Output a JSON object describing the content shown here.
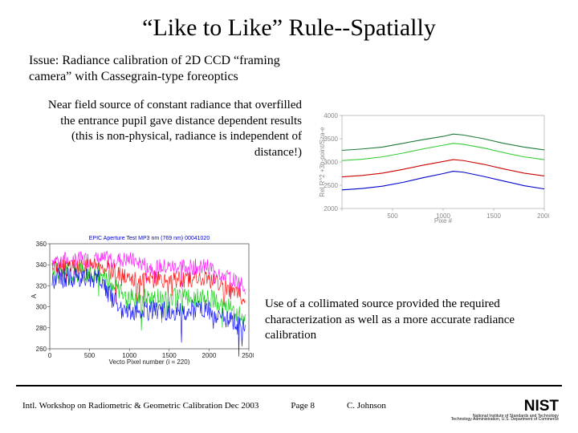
{
  "title": "“Like to Like” Rule--Spatially",
  "issue": "Issue:  Radiance calibration of 2D CCD “framing camera” with Cassegrain-type foreoptics",
  "nearfield": "Near field source of constant radiance that overfilled the entrance pupil gave distance dependent results (this is non-physical, radiance is independent of distance!)",
  "collimated": "Use of a collimated source provided the required characterization as well as a more accurate radiance calibration",
  "footer_left": "Intl. Workshop on Radiometric & Geometric Calibration  Dec 2003",
  "footer_page": "Page 8",
  "footer_author": "C. Johnson",
  "nist_sub1": "National Institute of Standards and Technology",
  "nist_sub2": "Technology Administration, U.S. Department of Commerce",
  "chart_upper": {
    "type": "line",
    "xlabel": "Pixe #",
    "ylabel": "Rel R^2  +3b-point/Sza-e",
    "xlim": [
      0,
      2000
    ],
    "ylim": [
      2000,
      4000
    ],
    "xtick_step": 500,
    "ytick_step": 500,
    "background_color": "#ffffff",
    "grid_color": "#cccccc",
    "tick_color": "#888888",
    "series": [
      {
        "name": "s1",
        "color": "#1d7a3a",
        "x": [
          0,
          200,
          400,
          600,
          800,
          1000,
          1100,
          1200,
          1400,
          1600,
          1800,
          2000
        ],
        "y": [
          3250,
          3280,
          3320,
          3400,
          3480,
          3550,
          3600,
          3580,
          3500,
          3400,
          3320,
          3260
        ]
      },
      {
        "name": "s2",
        "color": "#33cc33",
        "x": [
          0,
          200,
          400,
          600,
          800,
          1000,
          1100,
          1200,
          1400,
          1600,
          1800,
          2000
        ],
        "y": [
          3030,
          3060,
          3110,
          3190,
          3280,
          3360,
          3400,
          3380,
          3300,
          3200,
          3110,
          3050
        ]
      },
      {
        "name": "s3",
        "color": "#cc0000",
        "x": [
          0,
          200,
          400,
          600,
          800,
          1000,
          1100,
          1200,
          1400,
          1600,
          1800,
          2000
        ],
        "y": [
          2680,
          2710,
          2760,
          2840,
          2930,
          3010,
          3050,
          3030,
          2950,
          2850,
          2760,
          2700
        ]
      },
      {
        "name": "s4",
        "color": "#0000cc",
        "x": [
          0,
          200,
          400,
          600,
          800,
          1000,
          1100,
          1200,
          1400,
          1600,
          1800,
          2000
        ],
        "y": [
          2400,
          2430,
          2480,
          2560,
          2660,
          2750,
          2800,
          2780,
          2690,
          2590,
          2490,
          2420
        ]
      }
    ]
  },
  "chart_lower": {
    "type": "noisy-line",
    "title": "EPIC Aperture Test   MP3 nm (769 nm)   00041020",
    "xlabel": "Vecto Pixel number (i = 220)",
    "ylabel": "A",
    "xlim": [
      0,
      2500
    ],
    "ylim": [
      260,
      360
    ],
    "xtick_step": 500,
    "ytick_step": 20,
    "background_color": "#ffffff",
    "series": [
      {
        "name": "magenta",
        "color": "#ff00ff",
        "base": 345,
        "noise": 8,
        "drop_at": 1000,
        "drop_to": 338
      },
      {
        "name": "red",
        "color": "#ff0000",
        "base": 338,
        "noise": 8,
        "drop_at": 700,
        "drop_to": 326
      },
      {
        "name": "green",
        "color": "#00cc00",
        "base": 333,
        "noise": 10,
        "drop_at": 650,
        "drop_to": 308
      },
      {
        "name": "blue",
        "color": "#0000ff",
        "base": 327,
        "noise": 10,
        "drop_at": 600,
        "drop_to": 297
      }
    ]
  }
}
